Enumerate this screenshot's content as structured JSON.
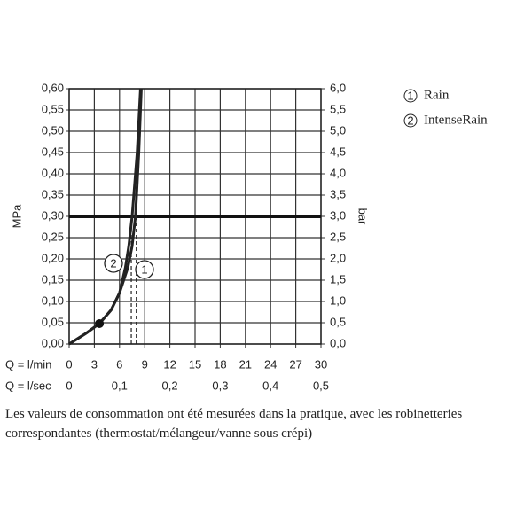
{
  "chart_data": {
    "type": "line",
    "x_label": "Q = l/min",
    "x2_label": "Q = l/sec",
    "y_label": "MPa",
    "y2_label": "bar",
    "xlim": [
      0,
      30
    ],
    "xticks": [
      0,
      3,
      6,
      9,
      12,
      15,
      18,
      21,
      24,
      27,
      30
    ],
    "x2lim": [
      0,
      0.5
    ],
    "x2ticks": [
      0,
      {
        "value": 0.1,
        "label": "0,1"
      },
      {
        "value": 0.2,
        "label": "0,2"
      },
      {
        "value": 0.3,
        "label": "0,3"
      },
      {
        "value": 0.4,
        "label": "0,4"
      },
      {
        "value": 0.5,
        "label": "0,5"
      }
    ],
    "ylim": [
      0,
      0.6
    ],
    "yticks": [
      {
        "value": 0,
        "label": "0,00"
      },
      {
        "value": 0.05,
        "label": "0,05"
      },
      {
        "value": 0.1,
        "label": "0,10"
      },
      {
        "value": 0.15,
        "label": "0,15"
      },
      {
        "value": 0.2,
        "label": "0,20"
      },
      {
        "value": 0.25,
        "label": "0,25"
      },
      {
        "value": 0.3,
        "label": "0,30"
      },
      {
        "value": 0.35,
        "label": "0,35"
      },
      {
        "value": 0.4,
        "label": "0,40"
      },
      {
        "value": 0.45,
        "label": "0,45"
      },
      {
        "value": 0.5,
        "label": "0,50"
      },
      {
        "value": 0.55,
        "label": "0,55"
      },
      {
        "value": 0.6,
        "label": "0,60"
      }
    ],
    "y2lim": [
      0,
      6
    ],
    "y2ticks": [
      {
        "value": 0,
        "label": "0,0"
      },
      {
        "value": 0.5,
        "label": "0,5"
      },
      {
        "value": 1,
        "label": "1,0"
      },
      {
        "value": 1.5,
        "label": "1,5"
      },
      {
        "value": 2,
        "label": "2,0"
      },
      {
        "value": 2.5,
        "label": "2,5"
      },
      {
        "value": 3,
        "label": "3,0"
      },
      {
        "value": 3.5,
        "label": "3,5"
      },
      {
        "value": 4,
        "label": "4,0"
      },
      {
        "value": 4.5,
        "label": "4,5"
      },
      {
        "value": 5,
        "label": "5,0"
      },
      {
        "value": 5.5,
        "label": "5,5"
      },
      {
        "value": 6,
        "label": "6,0"
      }
    ],
    "grid": true,
    "reference_line": 0.3,
    "marker": {
      "x": 3.6,
      "y": 0.048
    },
    "series": [
      {
        "name": "Rain",
        "symbol": "1",
        "color": "#222",
        "reference_x": 8.0,
        "x": [
          0,
          2,
          3.6,
          5,
          6,
          7,
          7.5,
          7.9,
          8.3,
          8.6
        ],
        "values": [
          0,
          0.025,
          0.048,
          0.08,
          0.12,
          0.18,
          0.23,
          0.3,
          0.45,
          0.6
        ]
      },
      {
        "name": "IntenseRain",
        "symbol": "2",
        "color": "#222",
        "reference_x": 7.4,
        "x": [
          0,
          2,
          3.6,
          5,
          6,
          6.7,
          7.1,
          7.5,
          8.1,
          8.5
        ],
        "values": [
          0,
          0.025,
          0.048,
          0.08,
          0.12,
          0.18,
          0.23,
          0.3,
          0.45,
          0.6
        ]
      }
    ]
  },
  "caption": "Les valeurs de consommation ont été mesurées dans la pratique, avec les robinetteries correspondantes (thermostat/mélangeur/vanne sous crépi)"
}
